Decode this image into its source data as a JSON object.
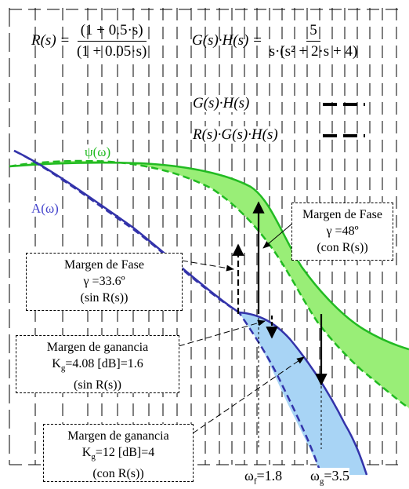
{
  "equations": {
    "r_lhs": "R(s) =",
    "r_num": "(1 + 0.5·s)",
    "r_den": "(1 + 0.05·s)",
    "gh_lhs": "G(s)·H(s) =",
    "gh_num": "5",
    "gh_den": "s·(s² + 2·s + 4)"
  },
  "legend": {
    "gh": "G(s)·H(s)",
    "rgh": "R(s)·G(s)·H(s)"
  },
  "curve_labels": {
    "phase": "ψ(ω)",
    "magnitude": "A(ω)"
  },
  "annotations": {
    "phase_margin_with": {
      "title": "Margen de Fase",
      "value": "γ =48º",
      "note": "(con R(s))"
    },
    "phase_margin_without": {
      "title": "Margen de Fase",
      "value": "γ =33.6º",
      "note": "(sin R(s))"
    },
    "gain_margin_without": {
      "title": "Margen de ganancia",
      "k": "K",
      "sub": "g",
      "value": "=4.08 [dB]=1.6",
      "note": "(sin R(s))"
    },
    "gain_margin_with": {
      "title": "Margen de ganancia",
      "k": "K",
      "sub": "g",
      "value": "=12 [dB]=4",
      "note": "(con R(s))"
    }
  },
  "frequencies": {
    "wf": {
      "symbol": "ω",
      "sub": "f",
      "value": "=1.8"
    },
    "wg": {
      "symbol": "ω",
      "sub": "g",
      "value": "=3.5"
    }
  },
  "colors": {
    "phase": "#22bb22",
    "phase_fill": "#99ee77",
    "magnitude": "#3333aa",
    "magnitude_label": "#4444cc",
    "magnitude_fill": "#a8d4f5"
  }
}
